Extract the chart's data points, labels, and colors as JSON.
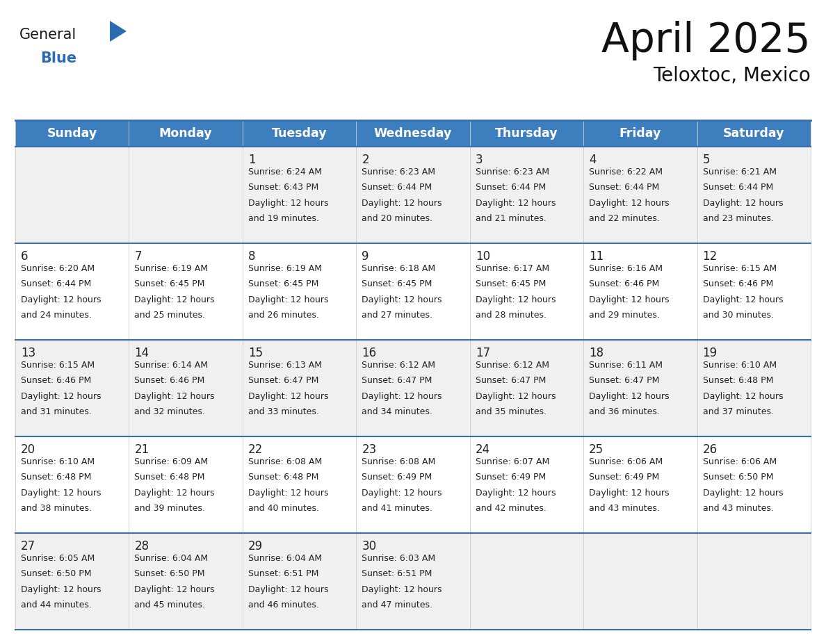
{
  "title": "April 2025",
  "subtitle": "Teloxtoc, Mexico",
  "header_bg": "#3d7ebf",
  "header_text": "#ffffff",
  "row_bg_odd": "#f0f0f0",
  "row_bg_even": "#ffffff",
  "border_color": "#3a6fa8",
  "text_color": "#222222",
  "days_of_week": [
    "Sunday",
    "Monday",
    "Tuesday",
    "Wednesday",
    "Thursday",
    "Friday",
    "Saturday"
  ],
  "logo_general_color": "#1a1a1a",
  "logo_blue_color": "#2b6cb0",
  "logo_triangle_color": "#2b6cb0",
  "weeks": [
    [
      {
        "day": "",
        "sunrise": "",
        "sunset": "",
        "daylight": ""
      },
      {
        "day": "",
        "sunrise": "",
        "sunset": "",
        "daylight": ""
      },
      {
        "day": "1",
        "sunrise": "6:24 AM",
        "sunset": "6:43 PM",
        "daylight": "12 hours and 19 minutes."
      },
      {
        "day": "2",
        "sunrise": "6:23 AM",
        "sunset": "6:44 PM",
        "daylight": "12 hours and 20 minutes."
      },
      {
        "day": "3",
        "sunrise": "6:23 AM",
        "sunset": "6:44 PM",
        "daylight": "12 hours and 21 minutes."
      },
      {
        "day": "4",
        "sunrise": "6:22 AM",
        "sunset": "6:44 PM",
        "daylight": "12 hours and 22 minutes."
      },
      {
        "day": "5",
        "sunrise": "6:21 AM",
        "sunset": "6:44 PM",
        "daylight": "12 hours and 23 minutes."
      }
    ],
    [
      {
        "day": "6",
        "sunrise": "6:20 AM",
        "sunset": "6:44 PM",
        "daylight": "12 hours and 24 minutes."
      },
      {
        "day": "7",
        "sunrise": "6:19 AM",
        "sunset": "6:45 PM",
        "daylight": "12 hours and 25 minutes."
      },
      {
        "day": "8",
        "sunrise": "6:19 AM",
        "sunset": "6:45 PM",
        "daylight": "12 hours and 26 minutes."
      },
      {
        "day": "9",
        "sunrise": "6:18 AM",
        "sunset": "6:45 PM",
        "daylight": "12 hours and 27 minutes."
      },
      {
        "day": "10",
        "sunrise": "6:17 AM",
        "sunset": "6:45 PM",
        "daylight": "12 hours and 28 minutes."
      },
      {
        "day": "11",
        "sunrise": "6:16 AM",
        "sunset": "6:46 PM",
        "daylight": "12 hours and 29 minutes."
      },
      {
        "day": "12",
        "sunrise": "6:15 AM",
        "sunset": "6:46 PM",
        "daylight": "12 hours and 30 minutes."
      }
    ],
    [
      {
        "day": "13",
        "sunrise": "6:15 AM",
        "sunset": "6:46 PM",
        "daylight": "12 hours and 31 minutes."
      },
      {
        "day": "14",
        "sunrise": "6:14 AM",
        "sunset": "6:46 PM",
        "daylight": "12 hours and 32 minutes."
      },
      {
        "day": "15",
        "sunrise": "6:13 AM",
        "sunset": "6:47 PM",
        "daylight": "12 hours and 33 minutes."
      },
      {
        "day": "16",
        "sunrise": "6:12 AM",
        "sunset": "6:47 PM",
        "daylight": "12 hours and 34 minutes."
      },
      {
        "day": "17",
        "sunrise": "6:12 AM",
        "sunset": "6:47 PM",
        "daylight": "12 hours and 35 minutes."
      },
      {
        "day": "18",
        "sunrise": "6:11 AM",
        "sunset": "6:47 PM",
        "daylight": "12 hours and 36 minutes."
      },
      {
        "day": "19",
        "sunrise": "6:10 AM",
        "sunset": "6:48 PM",
        "daylight": "12 hours and 37 minutes."
      }
    ],
    [
      {
        "day": "20",
        "sunrise": "6:10 AM",
        "sunset": "6:48 PM",
        "daylight": "12 hours and 38 minutes."
      },
      {
        "day": "21",
        "sunrise": "6:09 AM",
        "sunset": "6:48 PM",
        "daylight": "12 hours and 39 minutes."
      },
      {
        "day": "22",
        "sunrise": "6:08 AM",
        "sunset": "6:48 PM",
        "daylight": "12 hours and 40 minutes."
      },
      {
        "day": "23",
        "sunrise": "6:08 AM",
        "sunset": "6:49 PM",
        "daylight": "12 hours and 41 minutes."
      },
      {
        "day": "24",
        "sunrise": "6:07 AM",
        "sunset": "6:49 PM",
        "daylight": "12 hours and 42 minutes."
      },
      {
        "day": "25",
        "sunrise": "6:06 AM",
        "sunset": "6:49 PM",
        "daylight": "12 hours and 43 minutes."
      },
      {
        "day": "26",
        "sunrise": "6:06 AM",
        "sunset": "6:50 PM",
        "daylight": "12 hours and 43 minutes."
      }
    ],
    [
      {
        "day": "27",
        "sunrise": "6:05 AM",
        "sunset": "6:50 PM",
        "daylight": "12 hours and 44 minutes."
      },
      {
        "day": "28",
        "sunrise": "6:04 AM",
        "sunset": "6:50 PM",
        "daylight": "12 hours and 45 minutes."
      },
      {
        "day": "29",
        "sunrise": "6:04 AM",
        "sunset": "6:51 PM",
        "daylight": "12 hours and 46 minutes."
      },
      {
        "day": "30",
        "sunrise": "6:03 AM",
        "sunset": "6:51 PM",
        "daylight": "12 hours and 47 minutes."
      },
      {
        "day": "",
        "sunrise": "",
        "sunset": "",
        "daylight": ""
      },
      {
        "day": "",
        "sunrise": "",
        "sunset": "",
        "daylight": ""
      },
      {
        "day": "",
        "sunrise": "",
        "sunset": "",
        "daylight": ""
      }
    ]
  ]
}
